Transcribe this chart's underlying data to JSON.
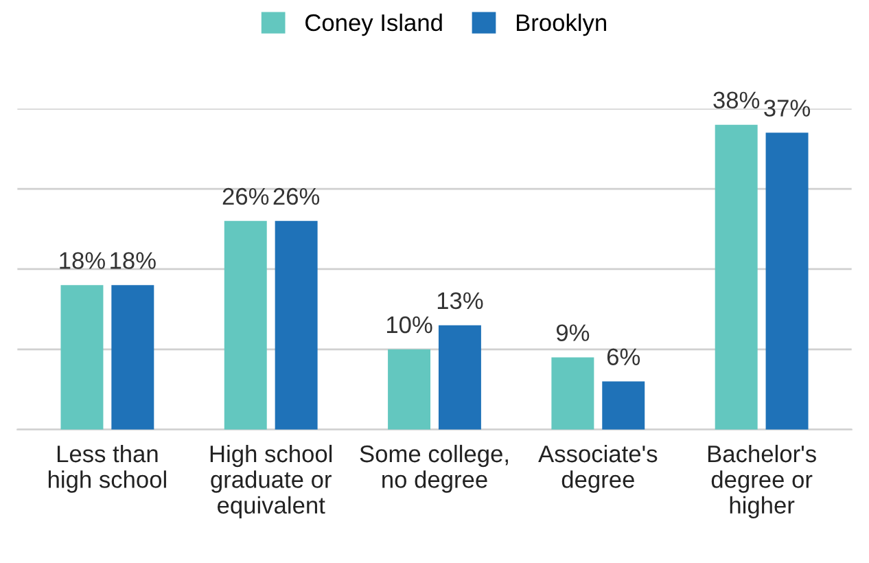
{
  "chart_data": {
    "type": "bar",
    "categories": [
      "Less than\nhigh school",
      "High school\ngraduate or\nequivalent",
      "Some college,\nno degree",
      "Associate's\ndegree",
      "Bachelor's\ndegree or\nhigher"
    ],
    "series": [
      {
        "name": "Coney Island",
        "color": "#63c7bf",
        "values": [
          18,
          26,
          10,
          9,
          38
        ],
        "value_labels": [
          "18%",
          "26%",
          "10%",
          "9%",
          "38%"
        ]
      },
      {
        "name": "Brooklyn",
        "color": "#1f72b8",
        "values": [
          18,
          26,
          13,
          6,
          37
        ],
        "value_labels": [
          "18%",
          "26%",
          "13%",
          "6%",
          "37%"
        ]
      }
    ],
    "ylim": [
      0,
      40
    ],
    "yticks": [
      0,
      10,
      20,
      30,
      40
    ],
    "tick_labels": "x",
    "grid": "y",
    "legend": "top"
  }
}
